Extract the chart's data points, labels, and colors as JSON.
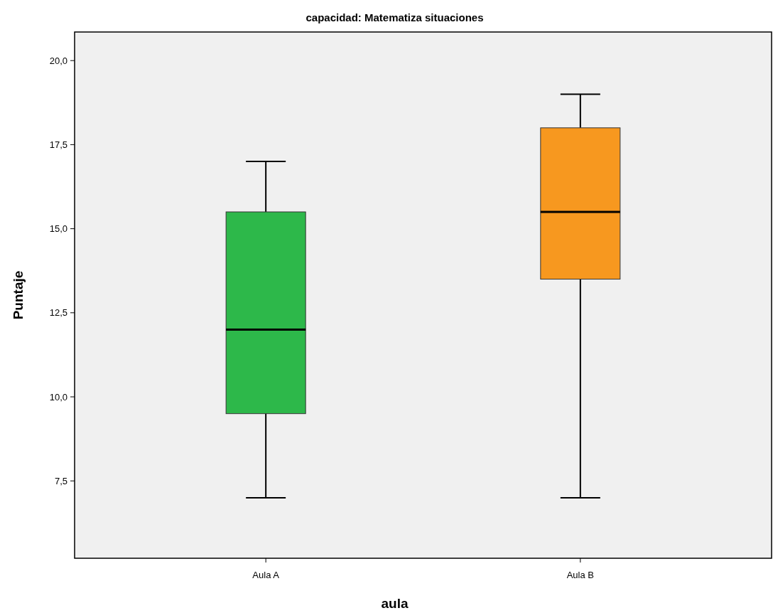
{
  "chart_data": {
    "type": "box",
    "title": "capacidad: Matematiza situaciones",
    "xlabel": "aula",
    "ylabel": "Puntaje",
    "categories": [
      "Aula A",
      "Aula B"
    ],
    "colors": [
      "#2db84a",
      "#f7981f"
    ],
    "boxes": [
      {
        "low": 7,
        "q1": 9.5,
        "median": 12,
        "q3": 15.5,
        "high": 17
      },
      {
        "low": 7,
        "q1": 13.5,
        "median": 15.5,
        "q3": 18,
        "high": 19
      }
    ],
    "ylim": [
      5.2,
      20.85
    ],
    "yticks": [
      {
        "value": 7.5,
        "label": "7,5"
      },
      {
        "value": 10,
        "label": "10,0"
      },
      {
        "value": 12.5,
        "label": "12,5"
      },
      {
        "value": 15,
        "label": "15,0"
      },
      {
        "value": 17.5,
        "label": "17,5"
      },
      {
        "value": 20,
        "label": "20,0"
      }
    ],
    "grid": false
  }
}
